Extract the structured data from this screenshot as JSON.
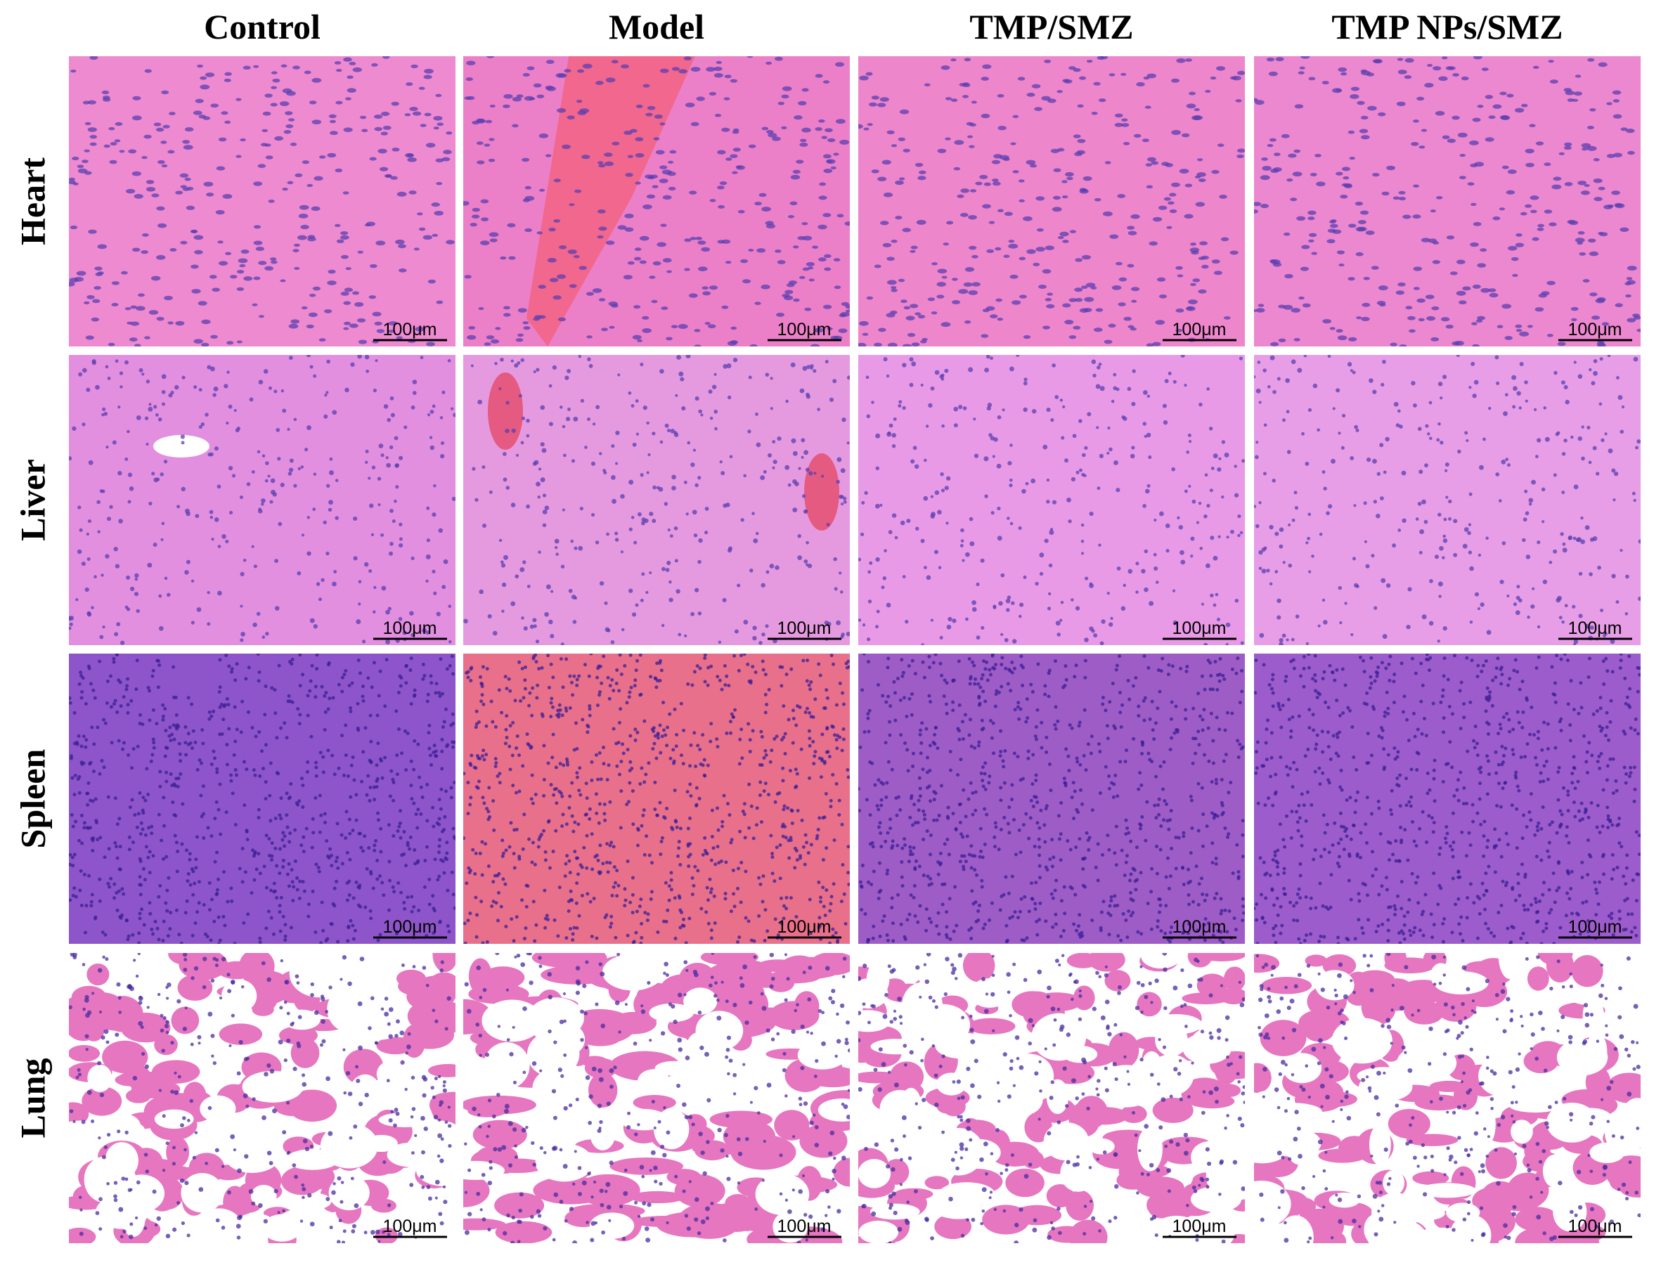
{
  "columns": [
    "Control",
    "Model",
    "TMP/SMZ",
    "TMP NPs/SMZ"
  ],
  "rows": [
    "Heart",
    "Liver",
    "Spleen",
    "Lung"
  ],
  "scale_bars": [
    [
      "100μm",
      "100μm",
      "100μm",
      "100μm"
    ],
    [
      "100μm",
      "100μm",
      "100μm",
      "100μm"
    ],
    [
      "100μm",
      "100μm",
      "100μm",
      "100μm"
    ],
    [
      "100μm",
      "100μm",
      "100μm",
      "100μm"
    ]
  ]
}
